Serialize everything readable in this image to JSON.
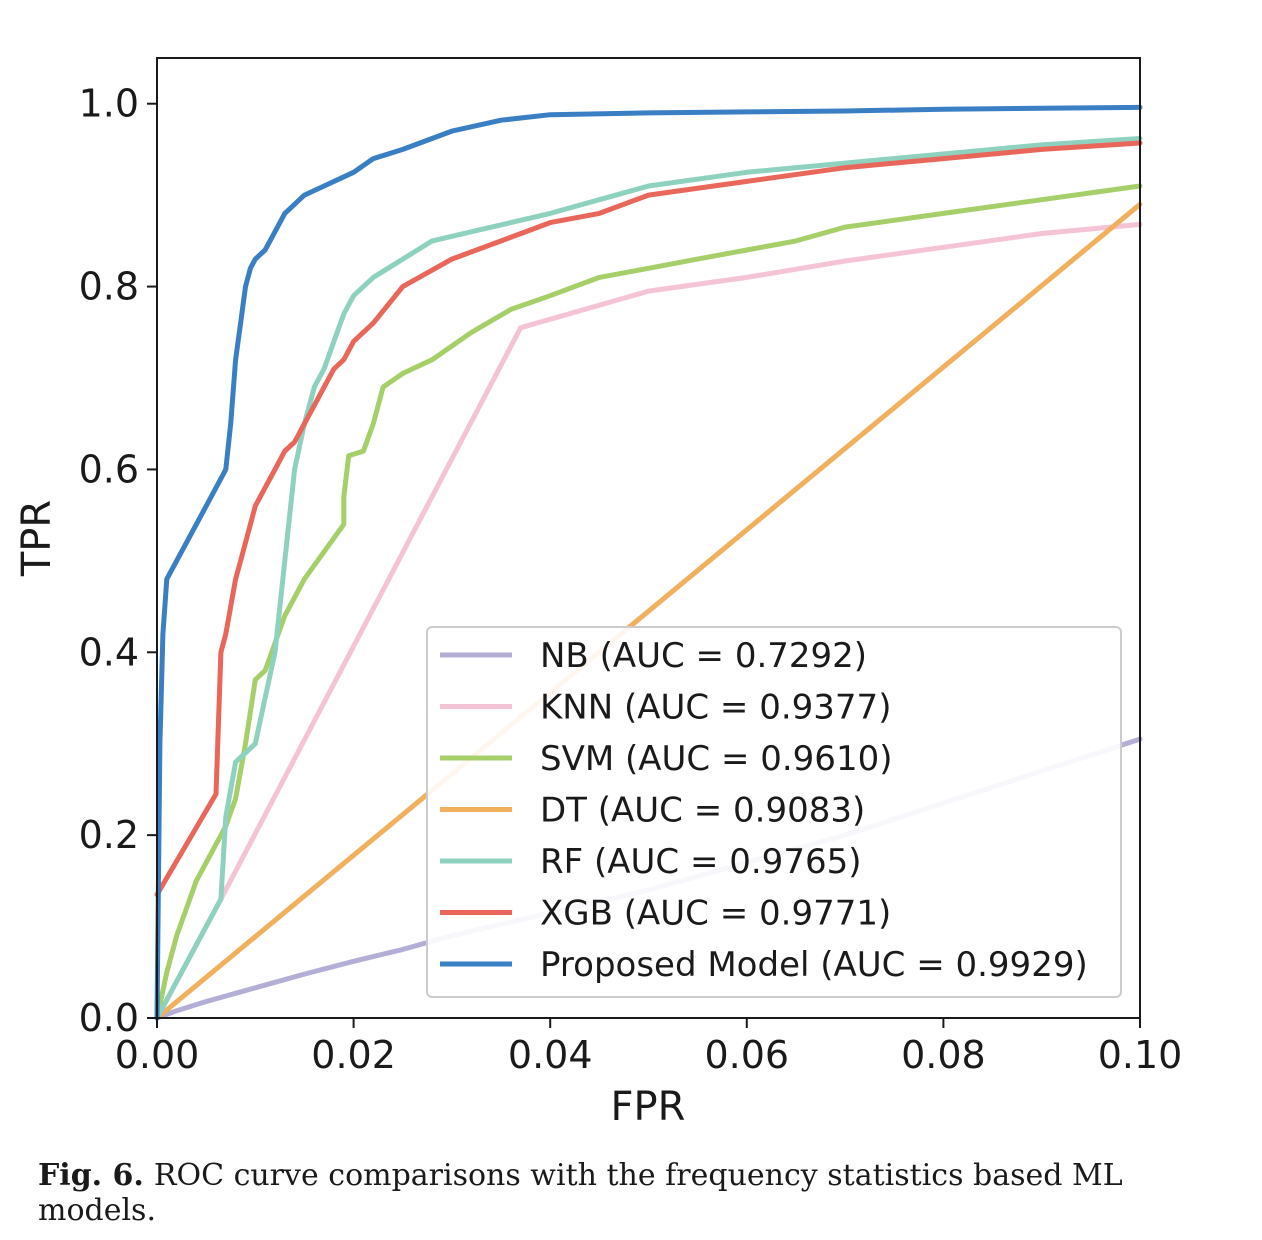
{
  "chart_data": {
    "type": "line",
    "xlabel": "FPR",
    "ylabel": "TPR",
    "xlim": [
      0,
      0.1
    ],
    "ylim": [
      0,
      1.05
    ],
    "xticks": [
      0.0,
      0.02,
      0.04,
      0.06,
      0.08,
      0.1
    ],
    "xtick_labels": [
      "0.00",
      "0.02",
      "0.04",
      "0.06",
      "0.08",
      "0.10"
    ],
    "yticks": [
      0.0,
      0.2,
      0.4,
      0.6,
      0.8,
      1.0
    ],
    "ytick_labels": [
      "0.0",
      "0.2",
      "0.4",
      "0.6",
      "0.8",
      "1.0"
    ],
    "grid": false,
    "legend_position": "lower-right",
    "series": [
      {
        "name": "NB (AUC = 0.7292)",
        "color": "#b3aed6",
        "x": [
          0,
          0.002,
          0.005,
          0.01,
          0.015,
          0.02,
          0.025,
          0.03,
          0.05,
          0.07,
          0.09,
          0.1
        ],
        "y": [
          0,
          0.008,
          0.018,
          0.033,
          0.048,
          0.062,
          0.075,
          0.09,
          0.14,
          0.2,
          0.27,
          0.305
        ]
      },
      {
        "name": "KNN (AUC = 0.9377)",
        "color": "#f4c4d6",
        "x": [
          0,
          0.0065,
          0.037,
          0.05,
          0.06,
          0.07,
          0.08,
          0.09,
          0.1
        ],
        "y": [
          0,
          0.13,
          0.755,
          0.795,
          0.81,
          0.828,
          0.843,
          0.858,
          0.868
        ]
      },
      {
        "name": "SVM (AUC = 0.9610)",
        "color": "#a6cf6a",
        "x": [
          0,
          0.001,
          0.002,
          0.003,
          0.004,
          0.006,
          0.007,
          0.008,
          0.009,
          0.01,
          0.011,
          0.012,
          0.013,
          0.015,
          0.017,
          0.019,
          0.019,
          0.0195,
          0.021,
          0.022,
          0.023,
          0.025,
          0.028,
          0.032,
          0.036,
          0.04,
          0.045,
          0.05,
          0.055,
          0.06,
          0.065,
          0.07,
          0.08,
          0.09,
          0.1
        ],
        "y": [
          0,
          0.05,
          0.09,
          0.12,
          0.15,
          0.19,
          0.21,
          0.24,
          0.3,
          0.37,
          0.38,
          0.41,
          0.44,
          0.48,
          0.51,
          0.54,
          0.57,
          0.615,
          0.62,
          0.65,
          0.69,
          0.705,
          0.72,
          0.75,
          0.775,
          0.79,
          0.81,
          0.82,
          0.83,
          0.84,
          0.85,
          0.865,
          0.88,
          0.895,
          0.91
        ]
      },
      {
        "name": "DT (AUC = 0.9083)",
        "color": "#f1b05e",
        "x": [
          0,
          0.1
        ],
        "y": [
          0,
          0.89
        ]
      },
      {
        "name": "RF (AUC = 0.9765)",
        "color": "#8ed1bf",
        "x": [
          0,
          0.0065,
          0.007,
          0.008,
          0.009,
          0.01,
          0.011,
          0.012,
          0.0125,
          0.013,
          0.0135,
          0.014,
          0.015,
          0.016,
          0.017,
          0.018,
          0.019,
          0.02,
          0.022,
          0.025,
          0.028,
          0.032,
          0.036,
          0.04,
          0.045,
          0.05,
          0.06,
          0.07,
          0.08,
          0.09,
          0.1
        ],
        "y": [
          0,
          0.13,
          0.22,
          0.28,
          0.29,
          0.3,
          0.35,
          0.4,
          0.45,
          0.5,
          0.55,
          0.6,
          0.65,
          0.69,
          0.71,
          0.74,
          0.77,
          0.79,
          0.81,
          0.83,
          0.85,
          0.86,
          0.87,
          0.88,
          0.895,
          0.91,
          0.925,
          0.935,
          0.945,
          0.955,
          0.962
        ]
      },
      {
        "name": "XGB (AUC = 0.9771)",
        "color": "#e8675a",
        "x": [
          0,
          0.006,
          0.0065,
          0.007,
          0.0075,
          0.008,
          0.0085,
          0.009,
          0.0095,
          0.01,
          0.011,
          0.012,
          0.013,
          0.014,
          0.015,
          0.016,
          0.017,
          0.018,
          0.019,
          0.02,
          0.022,
          0.025,
          0.03,
          0.035,
          0.04,
          0.045,
          0.05,
          0.06,
          0.07,
          0.08,
          0.09,
          0.1
        ],
        "y": [
          0.135,
          0.245,
          0.4,
          0.42,
          0.45,
          0.48,
          0.5,
          0.52,
          0.54,
          0.56,
          0.58,
          0.6,
          0.62,
          0.63,
          0.65,
          0.67,
          0.69,
          0.71,
          0.72,
          0.74,
          0.76,
          0.8,
          0.83,
          0.85,
          0.87,
          0.88,
          0.9,
          0.915,
          0.93,
          0.94,
          0.95,
          0.957
        ]
      },
      {
        "name": "Proposed Model (AUC = 0.9929)",
        "color": "#3a7fc3",
        "x": [
          0,
          0.0003,
          0.0006,
          0.001,
          0.003,
          0.005,
          0.007,
          0.0075,
          0.008,
          0.0085,
          0.009,
          0.0095,
          0.01,
          0.011,
          0.012,
          0.013,
          0.014,
          0.015,
          0.017,
          0.02,
          0.022,
          0.025,
          0.03,
          0.035,
          0.04,
          0.05,
          0.06,
          0.07,
          0.08,
          0.09,
          0.1
        ],
        "y": [
          0,
          0.3,
          0.42,
          0.48,
          0.52,
          0.56,
          0.6,
          0.65,
          0.72,
          0.76,
          0.8,
          0.82,
          0.83,
          0.84,
          0.86,
          0.88,
          0.89,
          0.9,
          0.91,
          0.925,
          0.94,
          0.95,
          0.97,
          0.982,
          0.988,
          0.99,
          0.991,
          0.992,
          0.994,
          0.995,
          0.996
        ]
      }
    ]
  },
  "caption": {
    "label": "Fig. 6.",
    "text": "ROC curve comparisons with the frequency statistics based ML models."
  }
}
